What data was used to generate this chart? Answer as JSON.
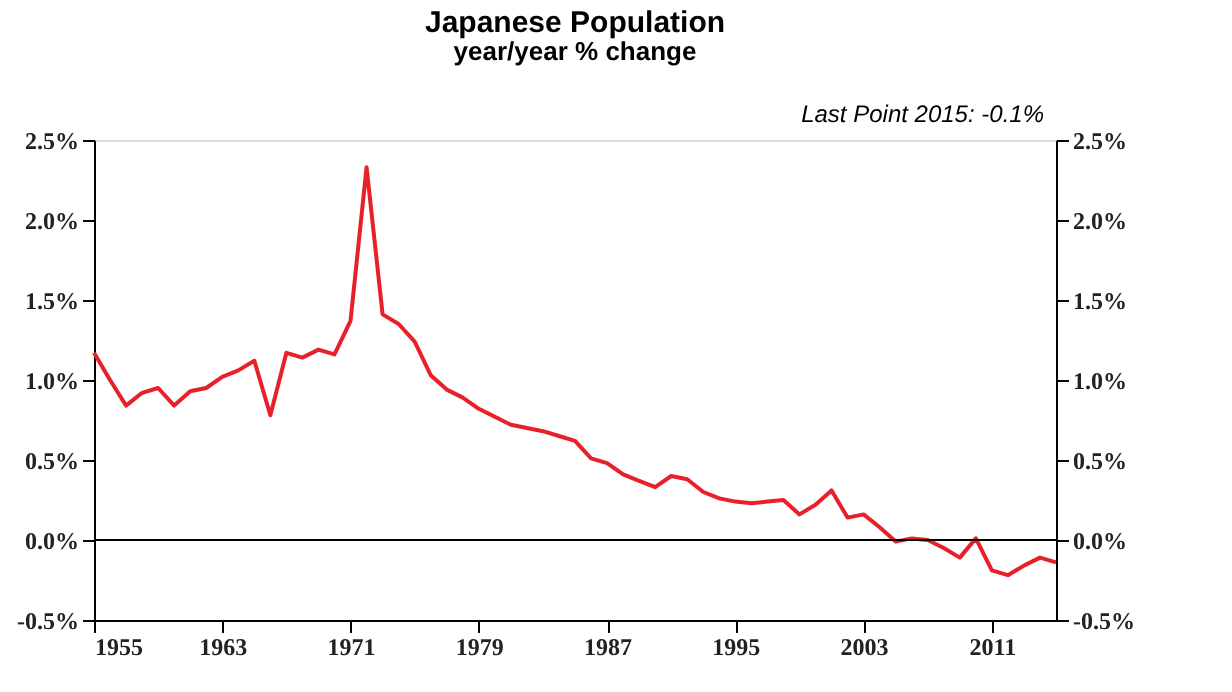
{
  "chart_data": {
    "type": "line",
    "title": "Japanese Population",
    "subtitle": "year/year % change",
    "annotations": [
      "Last Point 2015: -0.1%"
    ],
    "x": [
      1955,
      1956,
      1957,
      1958,
      1959,
      1960,
      1961,
      1962,
      1963,
      1964,
      1965,
      1966,
      1967,
      1968,
      1969,
      1970,
      1971,
      1972,
      1973,
      1974,
      1975,
      1976,
      1977,
      1978,
      1979,
      1980,
      1981,
      1982,
      1983,
      1984,
      1985,
      1986,
      1987,
      1988,
      1989,
      1990,
      1991,
      1992,
      1993,
      1994,
      1995,
      1996,
      1997,
      1998,
      1999,
      2000,
      2001,
      2002,
      2003,
      2004,
      2005,
      2006,
      2007,
      2008,
      2009,
      2010,
      2011,
      2012,
      2013,
      2014,
      2015
    ],
    "series": [
      {
        "color": "#e8202a",
        "values": [
          1.17,
          1.0,
          0.84,
          0.92,
          0.95,
          0.84,
          0.93,
          0.95,
          1.02,
          1.06,
          1.12,
          0.78,
          1.17,
          1.14,
          1.19,
          1.16,
          1.37,
          2.33,
          1.41,
          1.35,
          1.24,
          1.03,
          0.94,
          0.89,
          0.82,
          0.77,
          0.72,
          0.7,
          0.68,
          0.65,
          0.62,
          0.51,
          0.48,
          0.41,
          0.37,
          0.33,
          0.4,
          0.38,
          0.3,
          0.26,
          0.24,
          0.23,
          0.24,
          0.25,
          0.16,
          0.22,
          0.31,
          0.14,
          0.16,
          0.08,
          -0.01,
          0.01,
          0.0,
          -0.05,
          -0.11,
          0.01,
          -0.19,
          -0.22,
          -0.16,
          -0.11,
          -0.14
        ]
      }
    ],
    "xlim": [
      1955,
      2015
    ],
    "xticks": [
      1955,
      1963,
      1971,
      1979,
      1987,
      1995,
      2003,
      2011
    ],
    "ylim": [
      -0.5,
      2.5
    ],
    "yticks": [
      {
        "value": -0.5,
        "label": "-0.5%"
      },
      {
        "value": 0,
        "label": "0.0%"
      },
      {
        "value": 0.5,
        "label": "0.5%"
      },
      {
        "value": 1,
        "label": "1.0%"
      },
      {
        "value": 1.5,
        "label": "1.5%"
      },
      {
        "value": 2,
        "label": "2.0%"
      },
      {
        "value": 2.5,
        "label": "2.5%"
      }
    ],
    "y2lim": [
      -0.5,
      2.5
    ],
    "y2ticks": [
      {
        "value": -0.5,
        "label": "-0.5%"
      },
      {
        "value": 0,
        "label": "0.0%"
      },
      {
        "value": 0.5,
        "label": "0.5%"
      },
      {
        "value": 1,
        "label": "1.0%"
      },
      {
        "value": 1.5,
        "label": "1.5%"
      },
      {
        "value": 2,
        "label": "2.0%"
      },
      {
        "value": 2.5,
        "label": "2.5%"
      }
    ],
    "ref_lines": [
      {
        "axis": "y",
        "value": 0,
        "color": "#000000"
      }
    ],
    "grid": false,
    "marker": "none",
    "line_style": "solid"
  }
}
